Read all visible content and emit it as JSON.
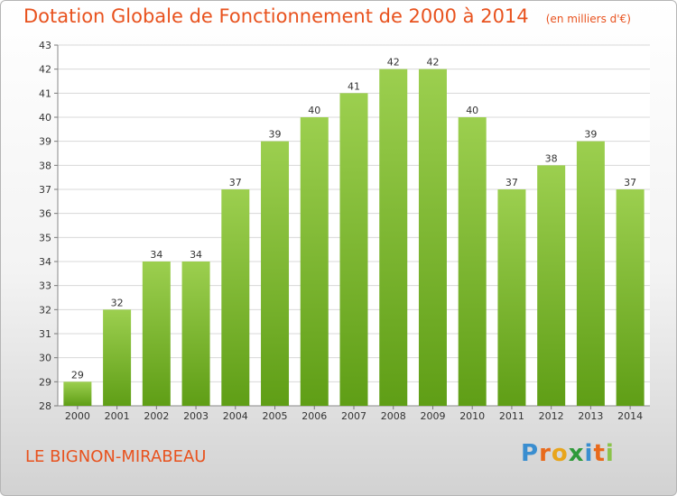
{
  "chart_data": {
    "type": "bar",
    "title": "Dotation Globale de Fonctionnement de 2000 à 2014",
    "unit": "(en milliers d'€)",
    "categories": [
      "2000",
      "2001",
      "2002",
      "2003",
      "2004",
      "2005",
      "2006",
      "2007",
      "2008",
      "2009",
      "2010",
      "2011",
      "2012",
      "2013",
      "2014"
    ],
    "values": [
      29,
      32,
      34,
      34,
      37,
      39,
      40,
      41,
      42,
      42,
      40,
      37,
      38,
      39,
      37
    ],
    "ylim": [
      28,
      43
    ],
    "yticks": [
      28,
      29,
      30,
      31,
      32,
      33,
      34,
      35,
      36,
      37,
      38,
      39,
      40,
      41,
      42,
      43
    ],
    "grid": true,
    "xlabel": "",
    "ylabel": "",
    "bar_color_top": "#9ccf4f",
    "bar_color_bottom": "#5f9e16"
  },
  "commune": "LE BIGNON-MIRABEAU",
  "logo": {
    "text": "Proxiti",
    "letter_colors": [
      "#3a8ed0",
      "#e86a1c",
      "#e8a51c",
      "#2f9a3a",
      "#3a8ed0",
      "#e86a1c",
      "#8bc34a"
    ]
  },
  "colors": {
    "accent": "#e8521e",
    "grid": "#d8d8d8"
  }
}
